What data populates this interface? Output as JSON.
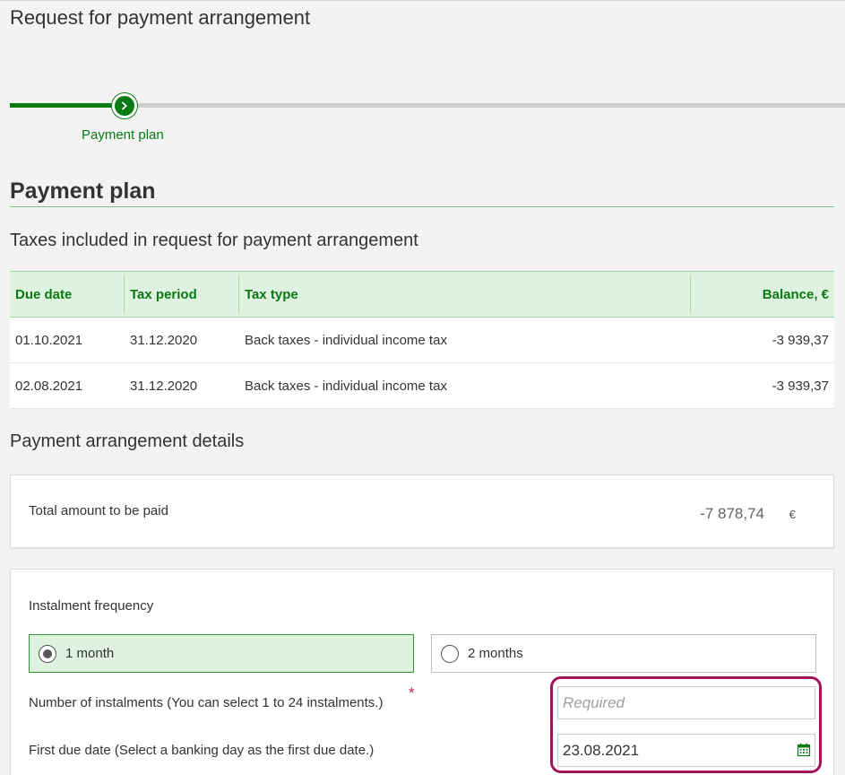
{
  "page": {
    "title": "Request for payment arrangement"
  },
  "stepper": {
    "current_step_label": "Payment plan"
  },
  "section": {
    "title": "Payment plan",
    "taxes_title": "Taxes included in request for payment arrangement"
  },
  "tax_table": {
    "headers": [
      "Due date",
      "Tax period",
      "Tax type",
      "Balance, €"
    ],
    "rows": [
      [
        "01.10.2021",
        "31.12.2020",
        "Back taxes - individual income tax",
        "-3 939,37"
      ],
      [
        "02.08.2021",
        "31.12.2020",
        "Back taxes - individual income tax",
        "-3 939,37"
      ]
    ]
  },
  "details": {
    "title": "Payment arrangement details",
    "total_label": "Total amount to be paid",
    "total_value": "-7 878,74",
    "total_currency": "€"
  },
  "form": {
    "frequency_label": "Instalment frequency",
    "options": [
      {
        "label": "1 month",
        "selected": true
      },
      {
        "label": "2 months",
        "selected": false
      }
    ],
    "instalments_label": "Number of instalments (You can select 1 to 24 instalments.)",
    "required_marker": "*",
    "instalments_placeholder": "Required",
    "instalments_value": "",
    "first_due_label": "First due date (Select a banking day as the first due date.)",
    "first_due_value": "23.08.2021"
  },
  "colors": {
    "accent": "#0a7a14",
    "header_bg": "#dff2df",
    "highlight": "#a0155f",
    "required": "#c0264f"
  },
  "icons": {
    "step": "chevron-right-icon",
    "date": "calendar-icon"
  }
}
